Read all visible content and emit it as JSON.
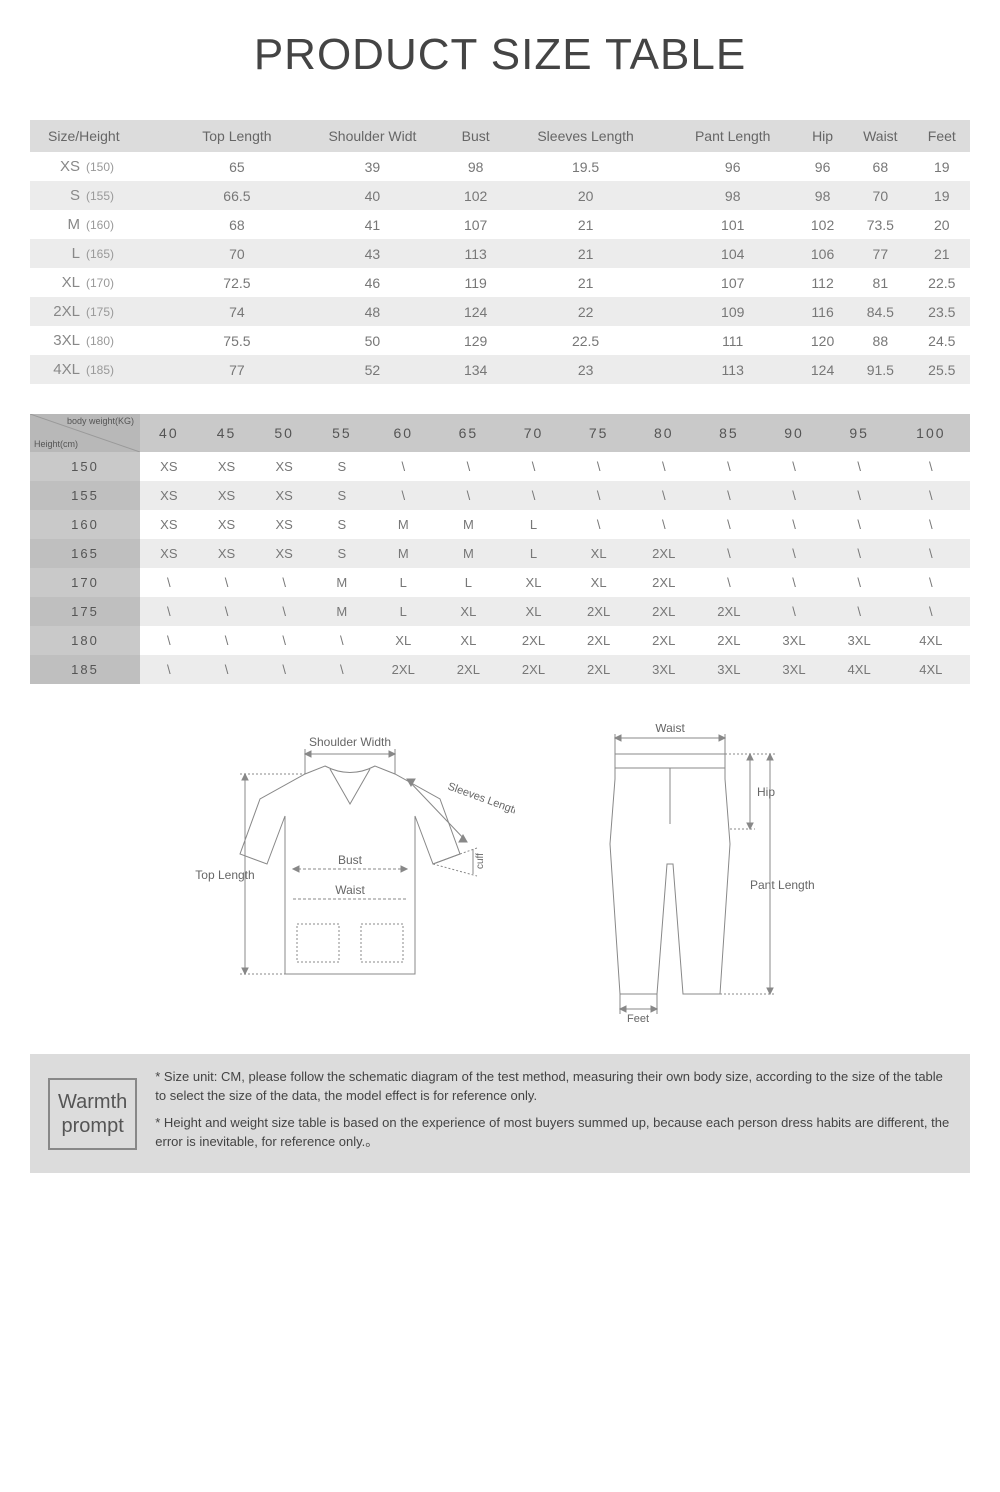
{
  "title": "PRODUCT SIZE TABLE",
  "table1": {
    "columns": [
      "Size/Height",
      "Top Length",
      "Shoulder Widt",
      "Bust",
      "Sleeves Length",
      "Pant Length",
      "Hip",
      "Waist",
      "Feet"
    ],
    "rows": [
      {
        "size": "XS",
        "height": "(150)",
        "vals": [
          "65",
          "39",
          "98",
          "19.5",
          "96",
          "96",
          "68",
          "19"
        ]
      },
      {
        "size": "S",
        "height": "(155)",
        "vals": [
          "66.5",
          "40",
          "102",
          "20",
          "98",
          "98",
          "70",
          "19"
        ]
      },
      {
        "size": "M",
        "height": "(160)",
        "vals": [
          "68",
          "41",
          "107",
          "21",
          "101",
          "102",
          "73.5",
          "20"
        ]
      },
      {
        "size": "L",
        "height": "(165)",
        "vals": [
          "70",
          "43",
          "113",
          "21",
          "104",
          "106",
          "77",
          "21"
        ]
      },
      {
        "size": "XL",
        "height": "(170)",
        "vals": [
          "72.5",
          "46",
          "119",
          "21",
          "107",
          "112",
          "81",
          "22.5"
        ]
      },
      {
        "size": "2XL",
        "height": "(175)",
        "vals": [
          "74",
          "48",
          "124",
          "22",
          "109",
          "116",
          "84.5",
          "23.5"
        ]
      },
      {
        "size": "3XL",
        "height": "(180)",
        "vals": [
          "75.5",
          "50",
          "129",
          "22.5",
          "111",
          "120",
          "88",
          "24.5"
        ]
      },
      {
        "size": "4XL",
        "height": "(185)",
        "vals": [
          "77",
          "52",
          "134",
          "23",
          "113",
          "124",
          "91.5",
          "25.5"
        ]
      }
    ]
  },
  "table2": {
    "corner_top": "body weight(KG)",
    "corner_bottom": "Height(cm)",
    "weights": [
      "40",
      "45",
      "50",
      "55",
      "60",
      "65",
      "70",
      "75",
      "80",
      "85",
      "90",
      "95",
      "100"
    ],
    "heights": [
      "150",
      "155",
      "160",
      "165",
      "170",
      "175",
      "180",
      "185"
    ],
    "grid": [
      [
        "XS",
        "XS",
        "XS",
        "S",
        "\\",
        "\\",
        "\\",
        "\\",
        "\\",
        "\\",
        "\\",
        "\\",
        "\\"
      ],
      [
        "XS",
        "XS",
        "XS",
        "S",
        "\\",
        "\\",
        "\\",
        "\\",
        "\\",
        "\\",
        "\\",
        "\\",
        "\\"
      ],
      [
        "XS",
        "XS",
        "XS",
        "S",
        "M",
        "M",
        "L",
        "\\",
        "\\",
        "\\",
        "\\",
        "\\",
        "\\"
      ],
      [
        "XS",
        "XS",
        "XS",
        "S",
        "M",
        "M",
        "L",
        "XL",
        "2XL",
        "\\",
        "\\",
        "\\",
        "\\"
      ],
      [
        "\\",
        "\\",
        "\\",
        "M",
        "L",
        "L",
        "XL",
        "XL",
        "2XL",
        "\\",
        "\\",
        "\\",
        "\\"
      ],
      [
        "\\",
        "\\",
        "\\",
        "M",
        "L",
        "XL",
        "XL",
        "2XL",
        "2XL",
        "2XL",
        "\\",
        "\\",
        "\\"
      ],
      [
        "\\",
        "\\",
        "\\",
        "\\",
        "XL",
        "XL",
        "2XL",
        "2XL",
        "2XL",
        "2XL",
        "3XL",
        "3XL",
        "4XL"
      ],
      [
        "\\",
        "\\",
        "\\",
        "\\",
        "2XL",
        "2XL",
        "2XL",
        "2XL",
        "3XL",
        "3XL",
        "3XL",
        "4XL",
        "4XL"
      ]
    ]
  },
  "diagram_labels": {
    "shoulder_width": "Shoulder Width",
    "sleeves_length": "Sleeves Length",
    "cuff": "cuff",
    "bust": "Bust",
    "waist": "Waist",
    "top_length": "Top Length",
    "waist_p": "Waist",
    "hip": "Hip",
    "pant_length": "Pant Length",
    "feet": "Feet"
  },
  "prompt": {
    "box_l1": "Warmth",
    "box_l2": "prompt",
    "note1": "* Size unit: CM, please follow the schematic diagram of the test method, measuring their own body size, according to the size of the table to select the size of the data, the model effect is for reference only.",
    "note2": "* Height and weight size table is based on the experience of most buyers summed up, because each person dress habits are different, the error is inevitable, for reference only.。"
  },
  "colors": {
    "header_bg": "#dcdcdc",
    "row_stripe": "#ececec",
    "t2_header": "#c9c9c9",
    "t2_corner": "#b8b8b8",
    "text": "#666666",
    "line": "#888888"
  }
}
